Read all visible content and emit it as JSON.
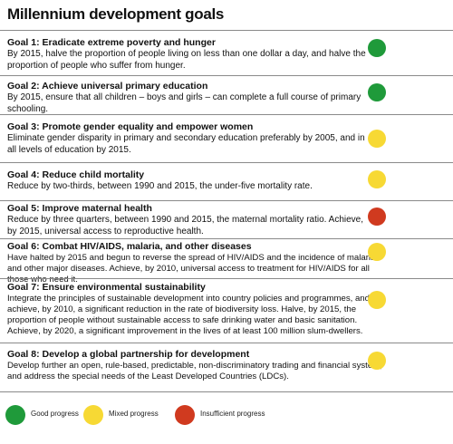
{
  "title": "Millennium development goals",
  "goals": [
    {
      "title": "Goal 1: Eradicate extreme poverty and hunger",
      "desc": "By 2015, halve the proportion of people living on less than one dollar a day, and halve the proportion of people who suffer from hunger.",
      "status": "good",
      "color": "#1f9a3a"
    },
    {
      "title": "Goal 2: Achieve universal primary education",
      "desc": "By 2015, ensure that all children – boys and girls – can complete a full course of primary schooling.",
      "status": "good",
      "color": "#1f9a3a"
    },
    {
      "title": "Goal 3: Promote gender equality and empower women",
      "desc": "Eliminate gender disparity in primary and secondary education preferably by 2005, and in all levels of education by 2015.",
      "status": "mixed",
      "color": "#f7d934"
    },
    {
      "title": "Goal 4: Reduce child mortality",
      "desc": "Reduce by two-thirds, between 1990 and 2015, the under-five mortality rate.",
      "status": "mixed",
      "color": "#f7d934"
    },
    {
      "title": "Goal 5: Improve maternal health",
      "desc": "Reduce by three quarters, between 1990 and 2015, the maternal mortality ratio. Achieve, by 2015, universal access to reproductive health.",
      "status": "insufficient",
      "color": "#d03a1f"
    },
    {
      "title": "Goal 6: Combat HIV/AIDS, malaria, and other diseases",
      "desc": "Have halted by 2015 and begun to reverse the spread of HIV/AIDS and the incidence of malaria and other major diseases. Achieve, by 2010, universal access to treatment for HIV/AIDS for all those who need it.",
      "status": "mixed",
      "color": "#f7d934"
    },
    {
      "title": "Goal 7: Ensure environmental sustainability",
      "desc": "Integrate the principles of sustainable development into country policies and programmes, and achieve, by 2010, a significant reduction in the rate of biodiversity loss. Halve, by 2015, the proportion of people without sustainable access to safe drinking water and basic sanitation. Achieve, by 2020, a significant improvement in the lives of at least 100 million slum-dwellers.",
      "status": "mixed",
      "color": "#f7d934"
    },
    {
      "title": "Goal 8: Develop a global partnership for development",
      "desc": "Develop further an open, rule-based, predictable, non-discriminatory trading and financial system, and address the special needs of the Least Developed Countries (LDCs).",
      "status": "mixed",
      "color": "#f7d934"
    }
  ],
  "legend": [
    {
      "label": "Good progress",
      "color": "#1f9a3a"
    },
    {
      "label": "Mixed progress",
      "color": "#f7d934"
    },
    {
      "label": "Insufficient progress",
      "color": "#d03a1f"
    }
  ]
}
